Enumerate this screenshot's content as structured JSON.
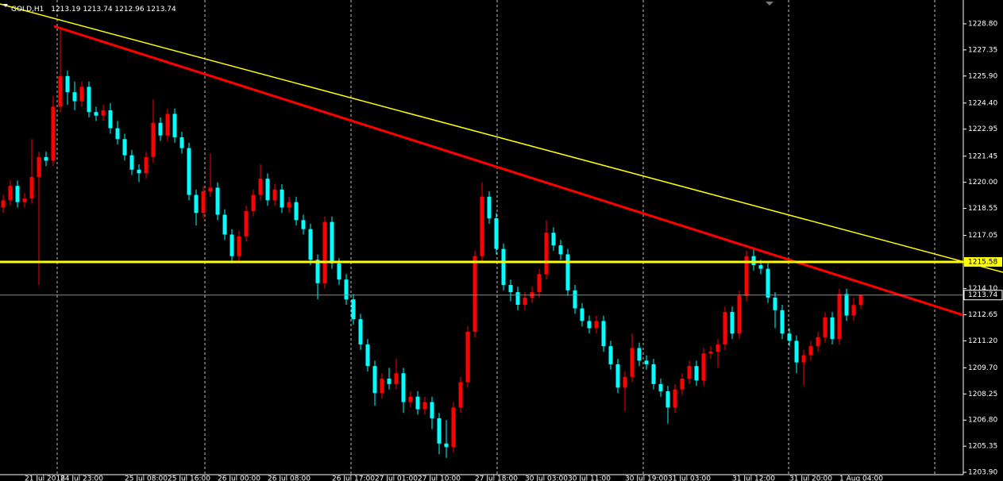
{
  "chart_data": {
    "type": "candlestick",
    "title": "GOLD,H1",
    "up_color": "#ff0000",
    "down_color": "#00ffff",
    "categories": [
      null,
      null,
      null,
      "21 Jul 2018",
      null,
      null,
      null,
      null,
      "24 Jul 23:00",
      null,
      null,
      null,
      null,
      null,
      null,
      null,
      null,
      "25 Jul 08:00",
      null,
      null,
      null,
      null,
      null,
      "25 Jul 16:00",
      null,
      null,
      null,
      null,
      null,
      null,
      "26 Jul 00:00",
      null,
      null,
      null,
      null,
      null,
      null,
      "26 Jul 08:00",
      null,
      null,
      null,
      null,
      null,
      null,
      null,
      null,
      "26 Jul 17:00",
      null,
      null,
      null,
      null,
      null,
      "27 Jul 01:00",
      null,
      null,
      null,
      null,
      null,
      "27 Jul 10:00",
      null,
      null,
      null,
      null,
      null,
      null,
      null,
      "27 Jul 18:00",
      null,
      null,
      null,
      null,
      null,
      null,
      "30 Jul 03:00",
      null,
      null,
      null,
      null,
      null,
      "30 Jul 11:00",
      null,
      null,
      null,
      null,
      null,
      null,
      null,
      "30 Jul 19:00",
      null,
      null,
      null,
      null,
      null,
      "31 Jul 03:00",
      null,
      null,
      null,
      null,
      null,
      null,
      null,
      null,
      "31 Jul 12:00",
      null,
      null,
      null,
      null,
      null,
      null,
      null,
      "31 Jul 20:00",
      null,
      null,
      null,
      null,
      null,
      null,
      "1 Aug 04:00",
      null,
      null,
      null
    ],
    "open": [
      1218.6,
      1219.0,
      1219.8,
      1218.9,
      1219.1,
      1220.3,
      1221.4,
      1221.2,
      1224.2,
      1225.9,
      1225.0,
      1224.5,
      1225.3,
      1223.9,
      1223.7,
      1224.0,
      1223.0,
      1222.4,
      1221.5,
      1220.7,
      1220.5,
      1221.4,
      1223.3,
      1222.6,
      1223.8,
      1222.5,
      1221.9,
      1219.3,
      1218.3,
      1219.5,
      1219.7,
      1218.2,
      1217.1,
      1215.9,
      1217.0,
      1218.4,
      1219.3,
      1220.2,
      1219.0,
      1219.6,
      1218.6,
      1218.9,
      1217.9,
      1217.4,
      1215.7,
      1214.4,
      1217.8,
      1215.5,
      1214.6,
      1213.5,
      1212.4,
      1211.0,
      1209.8,
      1208.3,
      1209.1,
      1208.8,
      1209.4,
      1207.8,
      1208.1,
      1207.4,
      1207.8,
      1206.9,
      1205.5,
      1205.3,
      1207.5,
      1208.9,
      1211.7,
      1215.9,
      1219.2,
      1218.0,
      1216.3,
      1214.3,
      1213.9,
      1213.2,
      1213.6,
      1213.9,
      1214.9,
      1217.2,
      1216.5,
      1216.0,
      1214.0,
      1213.0,
      1212.3,
      1211.9,
      1212.3,
      1210.9,
      1209.9,
      1208.6,
      1209.2,
      1210.8,
      1210.1,
      1209.9,
      1208.8,
      1208.4,
      1207.5,
      1208.5,
      1209.1,
      1209.8,
      1209.0,
      1210.5,
      1210.6,
      1211.0,
      1212.8,
      1211.6,
      1213.7,
      1215.9,
      1215.4,
      1215.2,
      1213.6,
      1212.9,
      1211.6,
      1211.2,
      1210.0,
      1210.4,
      1210.9,
      1211.4,
      1212.5,
      1211.3,
      1213.8,
      1212.6,
      1213.19
    ],
    "high": [
      1219.3,
      1220.1,
      1220.1,
      1219.4,
      1222.4,
      1221.7,
      1221.7,
      1224.8,
      1228.5,
      1226.2,
      1225.6,
      1225.6,
      1225.6,
      1224.2,
      1224.3,
      1224.4,
      1223.4,
      1222.7,
      1221.8,
      1221.0,
      1221.7,
      1224.6,
      1223.6,
      1224.1,
      1224.1,
      1222.8,
      1222.2,
      1219.6,
      1219.8,
      1221.6,
      1220.0,
      1218.5,
      1217.4,
      1217.3,
      1218.7,
      1219.6,
      1221.0,
      1220.5,
      1219.9,
      1219.9,
      1219.2,
      1219.2,
      1218.2,
      1217.7,
      1216.0,
      1218.1,
      1218.1,
      1215.8,
      1214.9,
      1213.8,
      1212.7,
      1211.3,
      1210.1,
      1209.4,
      1209.7,
      1210.2,
      1209.7,
      1208.4,
      1208.4,
      1208.1,
      1208.1,
      1207.2,
      1206.8,
      1207.8,
      1209.2,
      1212.0,
      1216.2,
      1220.0,
      1219.5,
      1218.3,
      1216.6,
      1214.6,
      1214.2,
      1213.9,
      1214.2,
      1215.2,
      1217.9,
      1217.5,
      1216.8,
      1216.3,
      1214.3,
      1213.3,
      1212.6,
      1212.6,
      1212.6,
      1211.2,
      1210.2,
      1209.5,
      1211.6,
      1211.1,
      1210.4,
      1210.2,
      1209.1,
      1208.7,
      1208.8,
      1209.4,
      1210.1,
      1210.1,
      1210.8,
      1210.9,
      1211.3,
      1213.1,
      1213.1,
      1214.0,
      1216.2,
      1216.3,
      1215.7,
      1215.5,
      1213.9,
      1213.2,
      1211.9,
      1211.5,
      1210.7,
      1211.2,
      1211.7,
      1212.8,
      1212.8,
      1214.1,
      1214.1,
      1213.6,
      1213.74
    ],
    "low": [
      1218.3,
      1218.7,
      1218.6,
      1218.6,
      1218.8,
      1214.3,
      1220.9,
      1220.9,
      1223.9,
      1224.3,
      1224.0,
      1224.2,
      1223.6,
      1223.4,
      1223.4,
      1222.7,
      1222.1,
      1221.2,
      1220.4,
      1220.0,
      1220.2,
      1221.1,
      1222.3,
      1222.3,
      1222.2,
      1221.6,
      1219.0,
      1217.6,
      1218.0,
      1219.2,
      1217.9,
      1216.8,
      1215.5,
      1215.6,
      1216.7,
      1218.1,
      1219.0,
      1218.7,
      1218.7,
      1218.3,
      1218.3,
      1217.6,
      1217.1,
      1215.4,
      1213.5,
      1214.1,
      1215.2,
      1214.3,
      1213.2,
      1212.1,
      1210.7,
      1209.5,
      1207.6,
      1208.0,
      1208.5,
      1208.5,
      1207.2,
      1207.5,
      1207.1,
      1207.1,
      1206.3,
      1204.9,
      1204.7,
      1205.0,
      1207.2,
      1208.6,
      1211.4,
      1215.6,
      1217.7,
      1216.0,
      1214.0,
      1213.4,
      1212.9,
      1212.9,
      1213.3,
      1213.6,
      1214.6,
      1216.2,
      1215.7,
      1213.7,
      1212.7,
      1212.0,
      1211.6,
      1211.6,
      1210.6,
      1209.6,
      1208.3,
      1207.3,
      1208.9,
      1209.8,
      1209.6,
      1208.5,
      1208.1,
      1206.6,
      1207.2,
      1208.2,
      1208.8,
      1208.7,
      1208.7,
      1210.2,
      1209.7,
      1210.7,
      1211.3,
      1211.3,
      1213.4,
      1215.1,
      1214.9,
      1213.3,
      1211.9,
      1211.3,
      1210.9,
      1209.4,
      1208.7,
      1210.1,
      1210.6,
      1211.1,
      1211.0,
      1211.0,
      1212.3,
      1212.3,
      1212.96
    ],
    "close": [
      1219.0,
      1219.8,
      1218.9,
      1219.1,
      1220.3,
      1221.4,
      1221.2,
      1224.2,
      1225.9,
      1225.0,
      1224.5,
      1225.3,
      1223.9,
      1223.7,
      1224.0,
      1223.0,
      1222.4,
      1221.5,
      1220.7,
      1220.5,
      1221.4,
      1223.3,
      1222.6,
      1223.8,
      1222.5,
      1221.9,
      1219.3,
      1218.3,
      1219.5,
      1219.7,
      1218.2,
      1217.1,
      1215.9,
      1217.0,
      1218.4,
      1219.3,
      1220.2,
      1219.0,
      1219.6,
      1218.6,
      1218.9,
      1217.9,
      1217.4,
      1215.7,
      1214.4,
      1217.8,
      1215.5,
      1214.6,
      1213.5,
      1212.4,
      1211.0,
      1209.8,
      1208.3,
      1209.1,
      1208.8,
      1209.4,
      1207.8,
      1208.1,
      1207.4,
      1207.8,
      1206.9,
      1205.5,
      1205.3,
      1207.5,
      1208.9,
      1211.7,
      1215.9,
      1219.2,
      1218.0,
      1216.3,
      1214.3,
      1213.9,
      1213.2,
      1213.6,
      1213.9,
      1214.9,
      1217.2,
      1216.5,
      1216.0,
      1214.0,
      1213.0,
      1212.3,
      1211.9,
      1212.3,
      1210.9,
      1209.9,
      1208.6,
      1209.2,
      1210.8,
      1210.1,
      1209.9,
      1208.8,
      1208.4,
      1207.5,
      1208.5,
      1209.1,
      1209.8,
      1209.0,
      1210.5,
      1210.6,
      1211.0,
      1212.8,
      1211.6,
      1213.7,
      1215.9,
      1215.4,
      1215.2,
      1213.6,
      1212.9,
      1211.6,
      1211.2,
      1210.0,
      1210.4,
      1210.9,
      1211.4,
      1212.5,
      1211.3,
      1213.8,
      1212.6,
      1213.19,
      1213.74
    ],
    "ylim": [
      1203.77,
      1230.12
    ],
    "yticks": [
      {
        "value": 1228.8,
        "label": "1228.80"
      },
      {
        "value": 1227.35,
        "label": "1227.35"
      },
      {
        "value": 1225.9,
        "label": "1225.90"
      },
      {
        "value": 1224.4,
        "label": "1224.40"
      },
      {
        "value": 1222.95,
        "label": "1222.95"
      },
      {
        "value": 1221.45,
        "label": "1221.45"
      },
      {
        "value": 1220,
        "label": "1220.00"
      },
      {
        "value": 1218.55,
        "label": "1218.55"
      },
      {
        "value": 1217.05,
        "label": "1217.05"
      },
      {
        "value": 1214.1,
        "label": "1214.10"
      },
      {
        "value": 1212.65,
        "label": "1212.65"
      },
      {
        "value": 1211.2,
        "label": "1211.20"
      },
      {
        "value": 1209.7,
        "label": "1209.70"
      },
      {
        "value": 1208.25,
        "label": "1208.25"
      },
      {
        "value": 1206.8,
        "label": "1206.80"
      },
      {
        "value": 1205.35,
        "label": "1205.35"
      },
      {
        "value": 1203.9,
        "label": "1203.90"
      }
    ],
    "level": {
      "value": 1215.58,
      "color": "#ffff00"
    },
    "bid": {
      "value": 1213.74,
      "color": "#8c8c8c"
    }
  }
}
